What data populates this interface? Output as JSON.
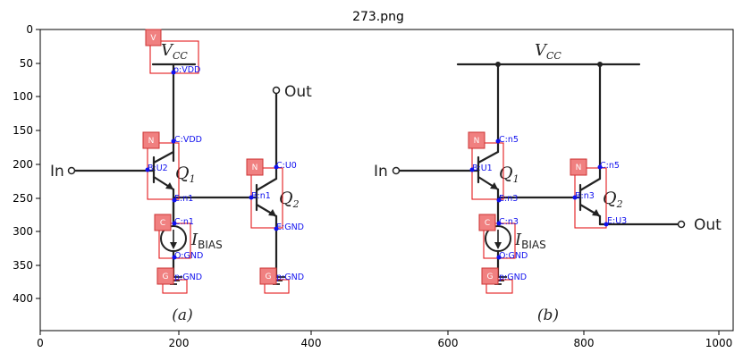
{
  "title": "273.png",
  "axes": {
    "x_ticks": [
      "0",
      "200",
      "400",
      "600",
      "800",
      "1000"
    ],
    "y_ticks": [
      "0",
      "50",
      "100",
      "150",
      "200",
      "250",
      "300",
      "350",
      "400"
    ]
  },
  "circuit_a": {
    "vcc_main": "V",
    "vcc_sub": "CC",
    "out": "Out",
    "in": "In",
    "q1_main": "Q",
    "q1_sub": "1",
    "q2_main": "Q",
    "q2_sub": "2",
    "ibias_main": "I",
    "ibias_sub": "BIAS",
    "caption": "(a)"
  },
  "circuit_b": {
    "vcc_main": "V",
    "vcc_sub": "CC",
    "out": "Out",
    "in": "In",
    "q1_main": "Q",
    "q1_sub": "1",
    "q2_main": "Q",
    "q2_sub": "2",
    "ibias_main": "I",
    "ibias_sub": "BIAS",
    "caption": "(b)"
  },
  "annotations_a": {
    "badges": [
      "V",
      "N",
      "N",
      "C",
      "G",
      "G"
    ],
    "pins": [
      "p:VDD",
      "C:VDD",
      "B:U2",
      "E:n1",
      "C:U0",
      "B:n1",
      "E:GND",
      "C:n1",
      "O:GND",
      "p:GND",
      "p:GND"
    ]
  },
  "annotations_b": {
    "badges": [
      "N",
      "N",
      "C",
      "G"
    ],
    "pins": [
      "C:n5",
      "B:U1",
      "E:n3",
      "C:n5",
      "B:n3",
      "E:U3",
      "C:n3",
      "O:GND",
      "p:GND"
    ]
  }
}
